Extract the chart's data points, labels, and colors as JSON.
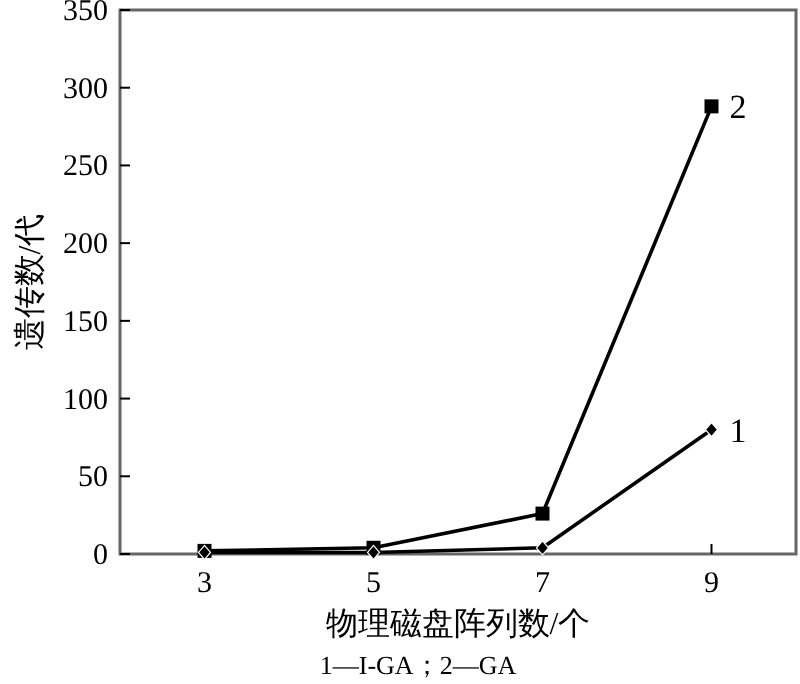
{
  "chart_data": {
    "type": "line",
    "xlabel": "物理磁盘阵列数/个",
    "ylabel": "遗传数/代",
    "annotations": [
      "1—I-GA；2—GA"
    ],
    "xlim": [
      2,
      10
    ],
    "xticks": [
      3,
      5,
      7,
      9
    ],
    "ylim": [
      0,
      350
    ],
    "yticks": [
      0,
      50,
      100,
      150,
      200,
      250,
      300,
      350
    ],
    "grid": false,
    "legend": false,
    "line_style": "solid",
    "series": [
      {
        "name": "1",
        "color": "#000000",
        "marker": "diamond",
        "x": [
          3,
          5,
          7,
          9
        ],
        "values": [
          1,
          1,
          4,
          80
        ]
      },
      {
        "name": "2",
        "color": "#000000",
        "marker": "square",
        "x": [
          3,
          5,
          7,
          9
        ],
        "values": [
          2,
          4,
          26,
          288
        ]
      }
    ]
  }
}
